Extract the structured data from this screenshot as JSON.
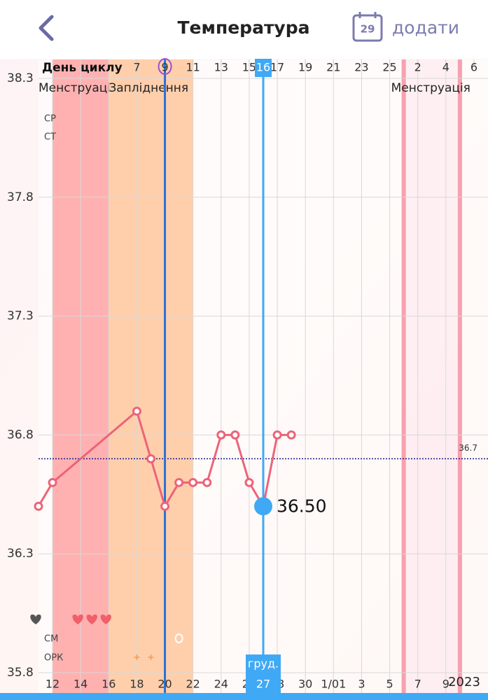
{
  "header": {
    "title": "Температура",
    "calendar_day": "29",
    "add_label": "додати"
  },
  "chart_data": {
    "type": "line",
    "x": [
      11,
      12,
      18,
      19,
      20,
      21,
      22,
      23,
      24,
      25,
      26,
      27,
      28,
      29
    ],
    "series": [
      {
        "color": "#ec6478",
        "values": [
          36.5,
          36.6,
          36.9,
          36.7,
          36.5,
          36.6,
          36.6,
          36.6,
          36.8,
          36.8,
          36.6,
          36.5,
          36.8,
          36.8
        ]
      }
    ],
    "xlim": [
      11,
      43
    ],
    "xticks": [
      12,
      14,
      16,
      18,
      20,
      22,
      24,
      26,
      28,
      30,
      {
        "value": 32,
        "label": "1/01"
      },
      {
        "value": 34,
        "label": "3"
      },
      {
        "value": 36,
        "label": "5"
      },
      {
        "value": 38,
        "label": "7"
      },
      {
        "value": 40,
        "label": "9"
      }
    ],
    "year_label": "2023",
    "ylim": [
      35.8,
      38.3
    ],
    "yticks": [
      35.8,
      36.3,
      36.8,
      37.3,
      37.8,
      38.3
    ],
    "grid": true,
    "cycle_day_label": "День циклу",
    "cycle_day_ticks": [
      {
        "value": 18,
        "label": "7"
      },
      {
        "value": 20,
        "label": "9"
      },
      {
        "value": 22,
        "label": "11"
      },
      {
        "value": 24,
        "label": "13"
      },
      {
        "value": 26,
        "label": "15"
      },
      {
        "value": 28,
        "label": "17"
      },
      {
        "value": 30,
        "label": "19"
      },
      {
        "value": 32,
        "label": "21"
      },
      {
        "value": 34,
        "label": "23"
      },
      {
        "value": 36,
        "label": "25"
      },
      {
        "value": 38,
        "label": "2"
      },
      {
        "value": 40,
        "label": "4"
      },
      {
        "value": 42,
        "label": "6"
      }
    ],
    "regions": [
      {
        "label": "Менструація",
        "start": 12,
        "end": 16,
        "color": "#ffa3a3"
      },
      {
        "label": "Запліднення",
        "start": 16,
        "end": 22,
        "color": "#ffc79e"
      },
      {
        "label": "Менструація",
        "start": 37,
        "end": 41,
        "color": "#fde3ec"
      }
    ],
    "ovulation_x": 20,
    "coverline": 36.7,
    "selected": {
      "x": 27,
      "value_label": "36.50",
      "date_label": "27",
      "month_label": "груд.",
      "cycle_day_label": "16"
    },
    "row_labels": [
      "СР",
      "СТ",
      "СМ",
      "ОРК"
    ],
    "hearts": [
      {
        "x": 11,
        "color": "#555555"
      },
      {
        "x": 14,
        "color": "#f0606a"
      },
      {
        "x": 15,
        "color": "#f0606a"
      },
      {
        "x": 16,
        "color": "#f0606a"
      }
    ],
    "opk_positive": [
      18,
      19
    ],
    "cm_days": [
      21
    ]
  }
}
